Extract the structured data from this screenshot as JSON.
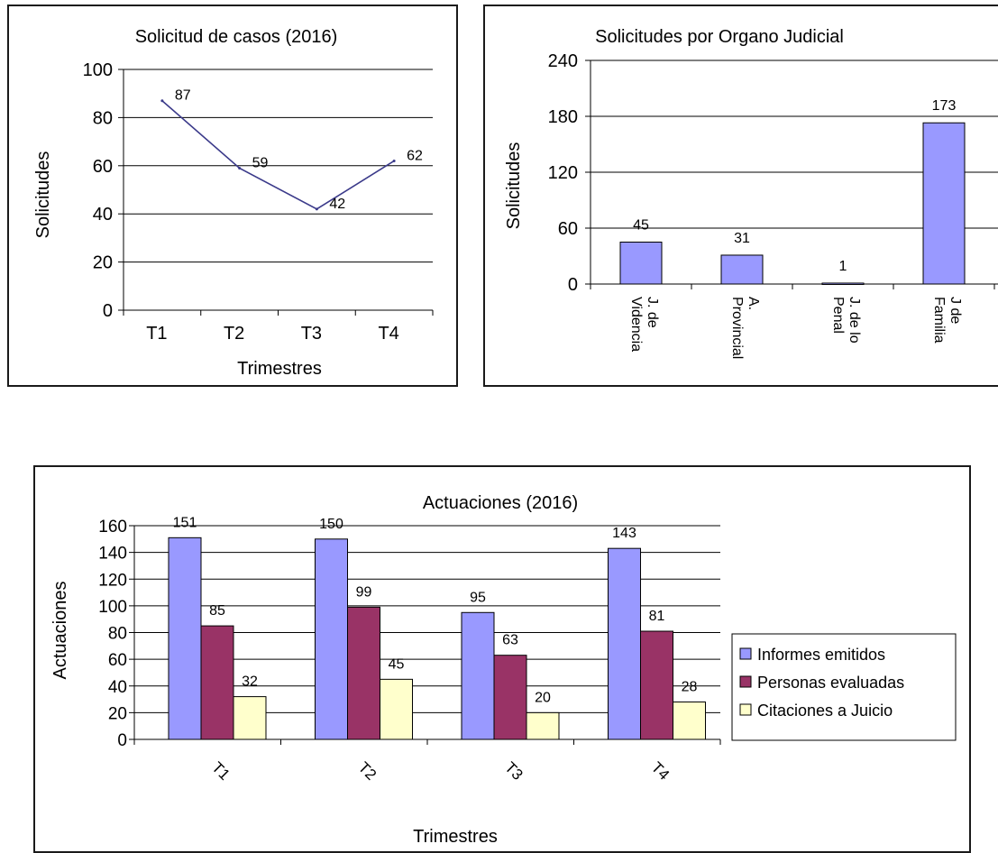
{
  "chart_data": [
    {
      "type": "line",
      "title": "Solicitud de casos (2016)",
      "xlabel": "Trimestres",
      "ylabel": "Solicitudes",
      "categories": [
        "T1",
        "T2",
        "T3",
        "T4"
      ],
      "series": [
        {
          "values": [
            87,
            59,
            42,
            62
          ],
          "color": "#3b3a8a"
        }
      ],
      "data_labels": [
        "87",
        "59",
        "42",
        "62"
      ],
      "yticks": [
        "0",
        "20",
        "40",
        "60",
        "80",
        "100"
      ],
      "ylim": [
        0,
        100
      ],
      "grid": true,
      "legend": "none"
    },
    {
      "type": "bar",
      "title": "Solicitudes por Organo Judicial",
      "xlabel": "",
      "ylabel": "Solicitudes",
      "categories": [
        [
          "J. de",
          "Videncia"
        ],
        [
          "A.",
          "Provincial"
        ],
        [
          "J. de lo",
          "Penal"
        ],
        [
          "J de",
          "Familia"
        ]
      ],
      "series": [
        {
          "values": [
            45,
            31,
            1,
            173
          ],
          "color": "#9999ff"
        }
      ],
      "data_labels": [
        "45",
        "31",
        "1",
        "173"
      ],
      "yticks": [
        "0",
        "60",
        "120",
        "180",
        "240"
      ],
      "ylim": [
        0,
        240
      ],
      "grid": true,
      "legend": "none"
    },
    {
      "type": "bar",
      "title": "Actuaciones (2016)",
      "xlabel": "Trimestres",
      "ylabel": "Actuaciones",
      "categories": [
        "T1",
        "T2",
        "T3",
        "T4"
      ],
      "series": [
        {
          "name": "Informes emitidos",
          "values": [
            151,
            150,
            95,
            143
          ],
          "color": "#9999ff"
        },
        {
          "name": "Personas evaluadas",
          "values": [
            85,
            99,
            63,
            81
          ],
          "color": "#993366"
        },
        {
          "name": "Citaciones a Juicio",
          "values": [
            32,
            45,
            20,
            28
          ],
          "color": "#ffffcc"
        }
      ],
      "data_labels": [
        [
          "151",
          "150",
          "95",
          "143"
        ],
        [
          "85",
          "99",
          "63",
          "81"
        ],
        [
          "32",
          "45",
          "20",
          "28"
        ]
      ],
      "yticks": [
        "0",
        "20",
        "40",
        "60",
        "80",
        "100",
        "120",
        "140",
        "160"
      ],
      "ylim": [
        0,
        160
      ],
      "grid": true,
      "legend": "right"
    }
  ]
}
